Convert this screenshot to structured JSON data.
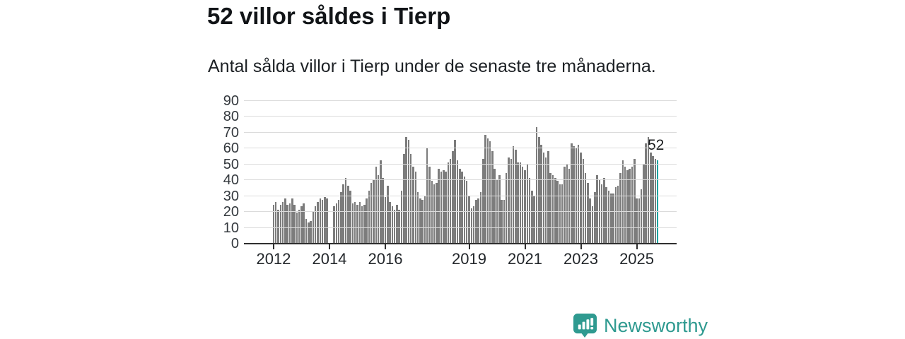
{
  "header": {
    "title": "52 villor såldes i Tierp",
    "subtitle": "Antal sålda villor i Tierp under de senaste tre månaderna."
  },
  "annotation": {
    "latest_value_label": "52"
  },
  "footer": {
    "brand_name": "Newsworthy",
    "logo_icon": "speech-bubble-bar-chart-icon"
  },
  "colors": {
    "bar": "#7c7c7c",
    "highlight": "#0aa3a0",
    "gridline": "#dbdbdb",
    "axis": "#2f2f2f",
    "brand_teal": "#2f9a90",
    "text_dark": "#17191b"
  },
  "chart_data": {
    "type": "bar",
    "title": "52 villor såldes i Tierp",
    "subtitle": "Antal sålda villor i Tierp under de senaste tre månaderna.",
    "unit": "sålda villor per rullande tremånadersperiod",
    "x_start_year": 2012,
    "x_start_month": 1,
    "x_end_label": "2025-10",
    "grid": true,
    "ylim": [
      0,
      90
    ],
    "yticks": [
      0,
      10,
      20,
      30,
      40,
      50,
      60,
      70,
      80,
      90
    ],
    "xtick_years": [
      2012,
      2014,
      2016,
      2019,
      2021,
      2023,
      2025
    ],
    "highlight_index": 165,
    "highlight_label": "52",
    "values": [
      24,
      26,
      21,
      24,
      26,
      28,
      24,
      25,
      28,
      24,
      19,
      21,
      23,
      25,
      15,
      13,
      14,
      20,
      23,
      26,
      28,
      27,
      29,
      28,
      0,
      0,
      23,
      25,
      27,
      32,
      37,
      41,
      36,
      33,
      25,
      26,
      24,
      26,
      23,
      24,
      28,
      33,
      38,
      40,
      48,
      43,
      52,
      41,
      29,
      36,
      26,
      23,
      21,
      24,
      21,
      33,
      56,
      67,
      65,
      56,
      48,
      45,
      32,
      28,
      27,
      30,
      60,
      48,
      39,
      37,
      38,
      47,
      45,
      46,
      45,
      51,
      53,
      58,
      65,
      52,
      47,
      45,
      42,
      39,
      30,
      22,
      23,
      27,
      28,
      32,
      53,
      68,
      66,
      64,
      58,
      47,
      40,
      43,
      27,
      27,
      44,
      54,
      53,
      61,
      59,
      51,
      51,
      48,
      46,
      50,
      41,
      33,
      30,
      73,
      67,
      62,
      57,
      54,
      58,
      44,
      43,
      41,
      39,
      37,
      37,
      48,
      50,
      47,
      63,
      61,
      60,
      62,
      57,
      53,
      44,
      38,
      28,
      23,
      32,
      43,
      40,
      37,
      41,
      35,
      33,
      31,
      31,
      35,
      36,
      44,
      52,
      48,
      46,
      47,
      48,
      53,
      28,
      28,
      34,
      50,
      63,
      67,
      57,
      55,
      53,
      52
    ]
  }
}
